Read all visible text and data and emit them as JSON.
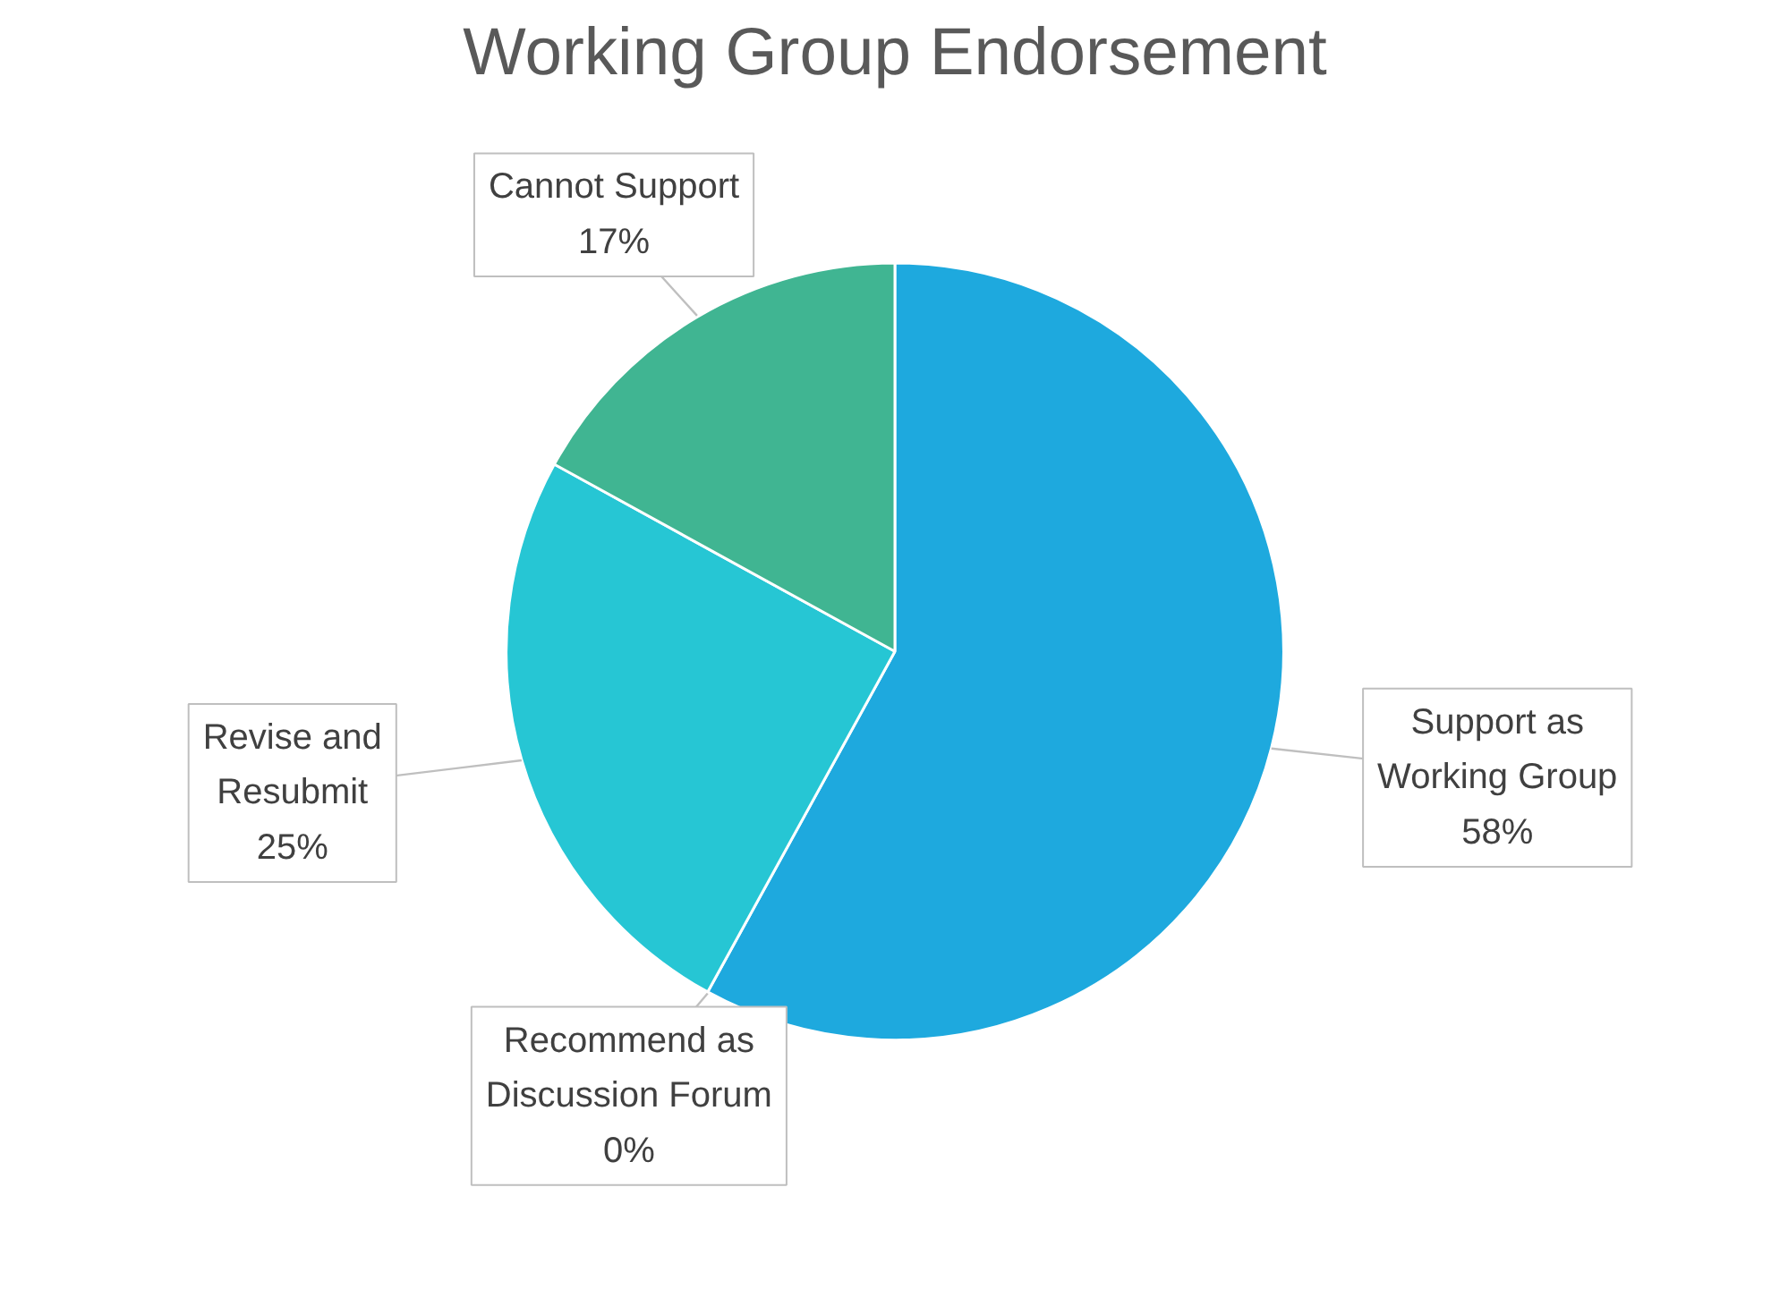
{
  "chart_data": {
    "type": "pie",
    "title": "Working Group Endorsement",
    "categories": [
      "Support as Working Group",
      "Recommend as Discussion Forum",
      "Revise and Resubmit",
      "Cannot Support"
    ],
    "values": [
      58,
      0,
      25,
      17
    ],
    "colors": [
      "#1ea9de",
      "#1b8fa3",
      "#26c6d4",
      "#40b592"
    ],
    "value_labels": [
      "58%",
      "0%",
      "25%",
      "17%"
    ]
  }
}
